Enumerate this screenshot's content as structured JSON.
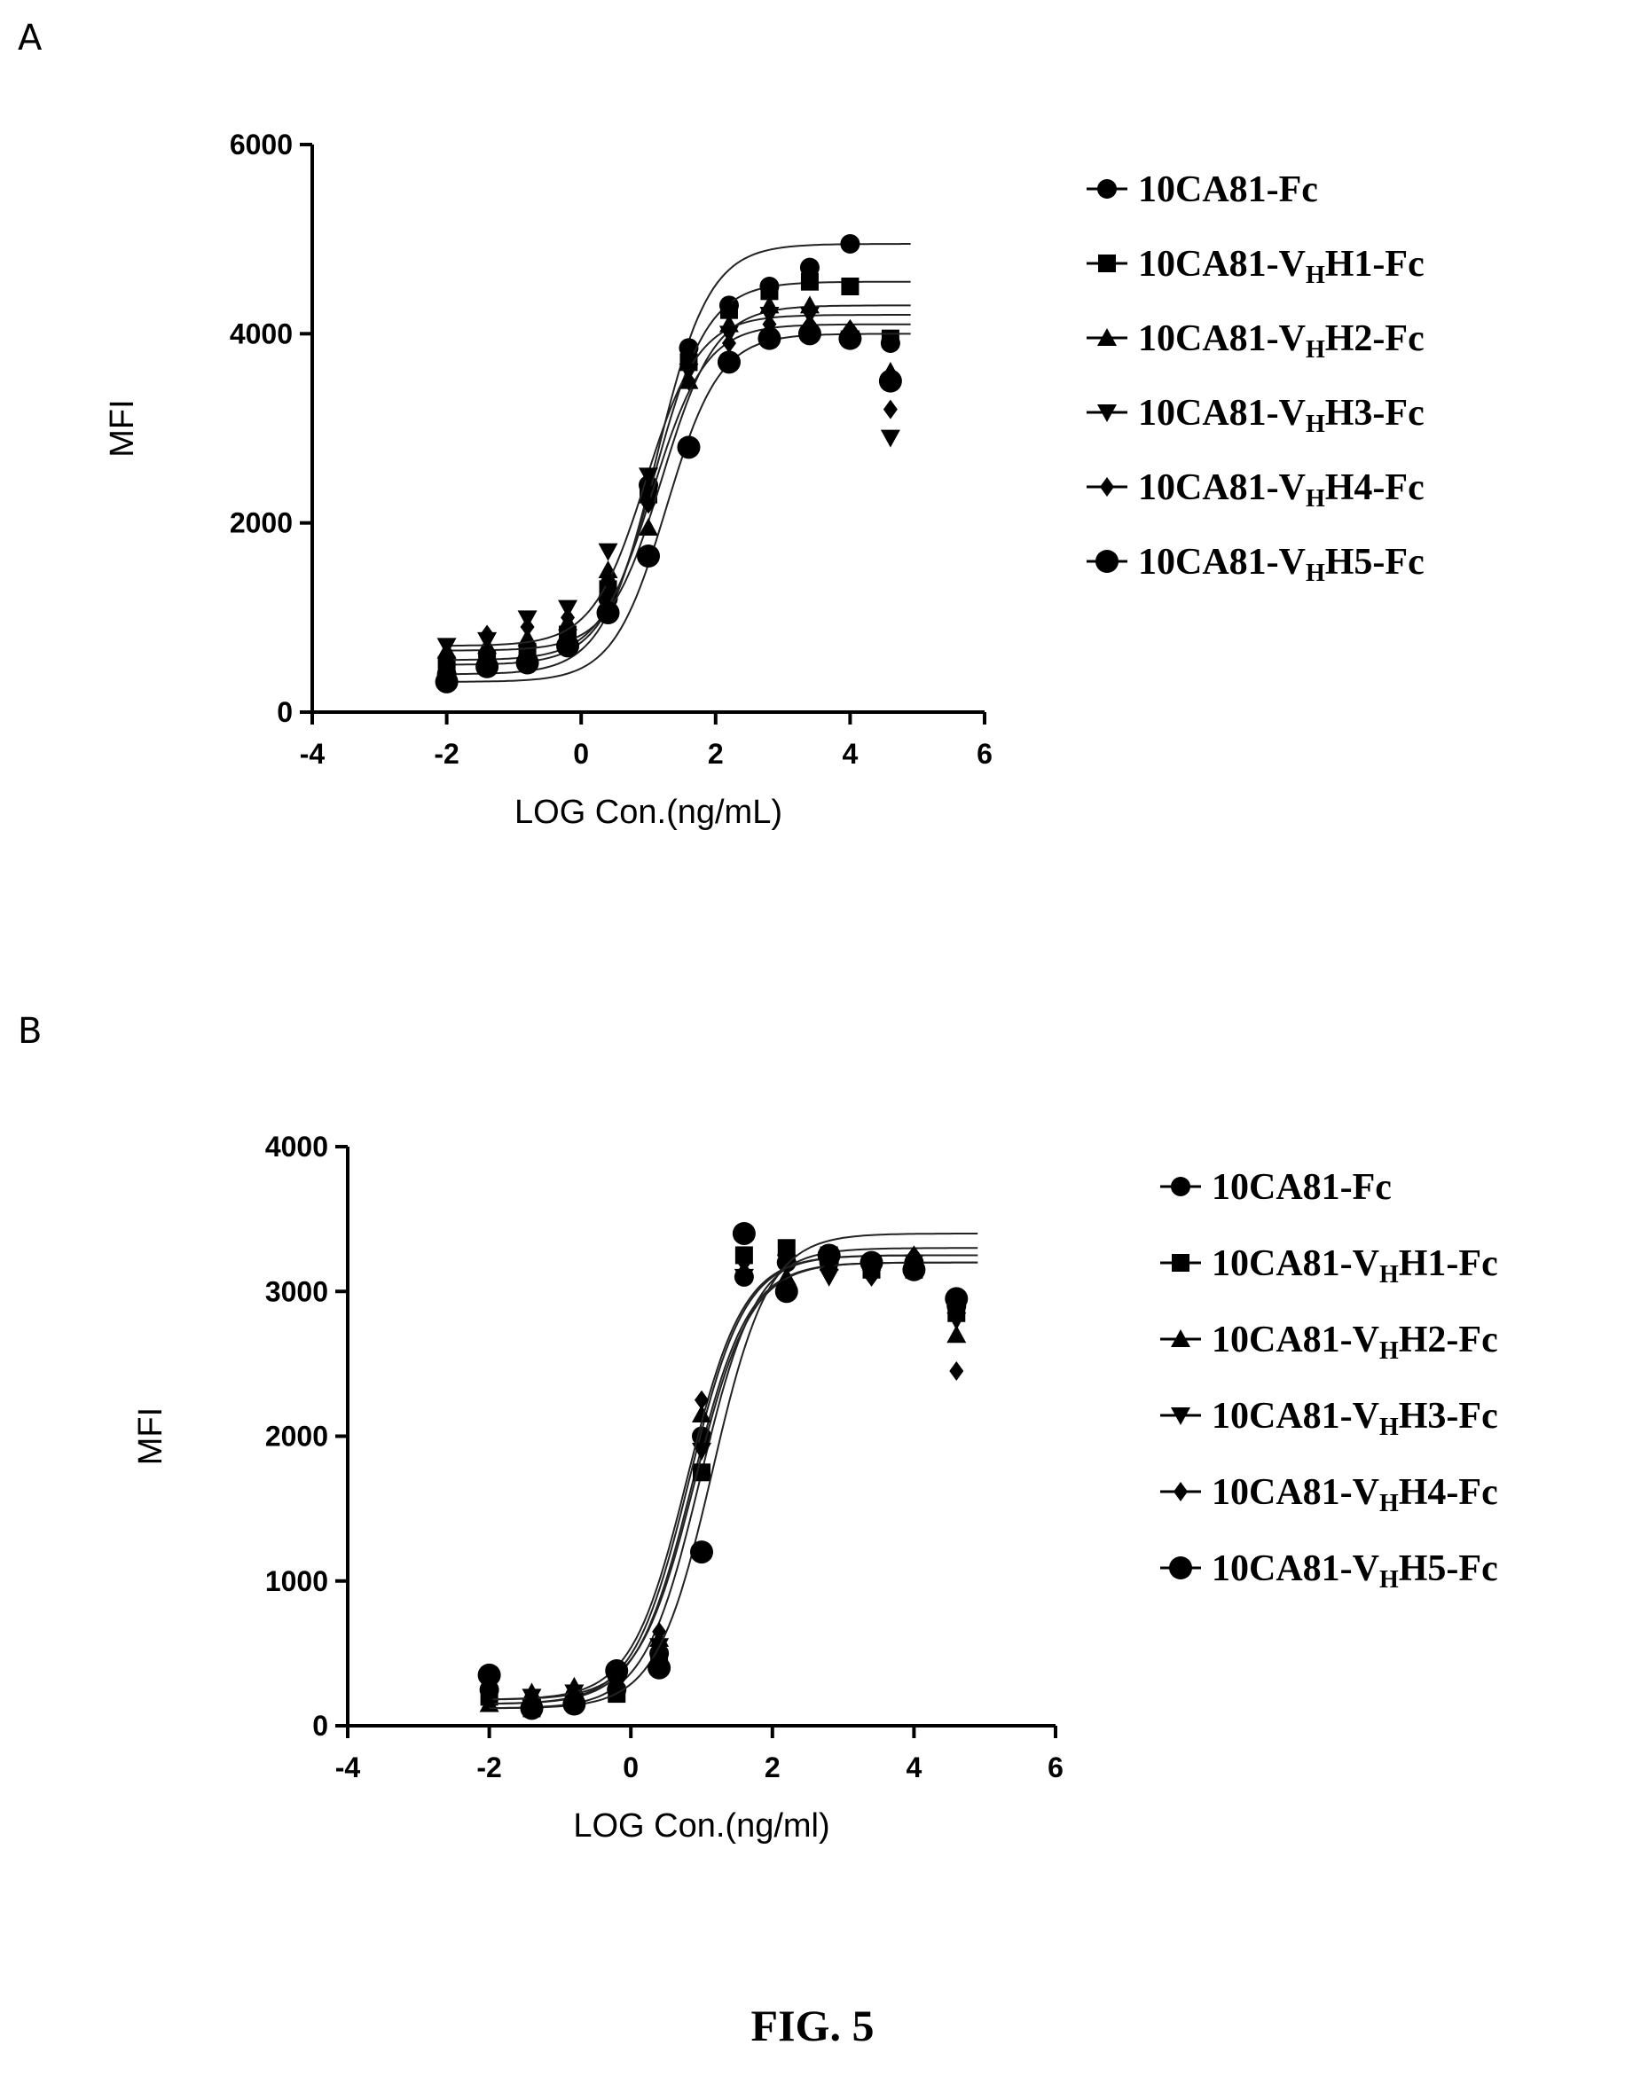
{
  "figure": {
    "caption": "FIG. 5"
  },
  "chart_data": [
    {
      "type": "scatter",
      "panel": "A",
      "xlabel": "LOG Con.(ng/mL)",
      "ylabel": "MFI",
      "xlim": [
        -4,
        6
      ],
      "ylim": [
        0,
        6000
      ],
      "xticks": [
        -4,
        -2,
        0,
        2,
        4,
        6
      ],
      "yticks": [
        0,
        2000,
        4000,
        6000
      ],
      "x": [
        -2.0,
        -1.4,
        -0.8,
        -0.2,
        0.4,
        1.0,
        1.6,
        2.2,
        2.8,
        3.4,
        4.0,
        4.6
      ],
      "grid": false,
      "legend_position": "right",
      "fit": "sigmoidal dose-response curve per series",
      "series": [
        {
          "name": "10CA81-Fc",
          "name_main": "10CA81-",
          "name_sub": "",
          "name_tail": "Fc",
          "marker": "circle",
          "values": [
            400,
            500,
            560,
            720,
            1200,
            2400,
            3850,
            4300,
            4500,
            4700,
            4950,
            3900
          ]
        },
        {
          "name": "10CA81-VHH1-Fc",
          "name_main": "10CA81-V",
          "name_sub": "H",
          "name_tail": "H1-Fc",
          "marker": "square",
          "values": [
            500,
            560,
            640,
            820,
            1300,
            2300,
            3700,
            4250,
            4450,
            4550,
            4500,
            3950
          ]
        },
        {
          "name": "10CA81-VHH2-Fc",
          "name_main": "10CA81-V",
          "name_sub": "H",
          "name_tail": "H2-Fc",
          "marker": "triangle-up",
          "values": [
            650,
            700,
            780,
            950,
            1500,
            1950,
            3500,
            4100,
            4300,
            4300,
            4050,
            3600
          ]
        },
        {
          "name": "10CA81-VHH3-Fc",
          "name_main": "10CA81-V",
          "name_sub": "H",
          "name_tail": "H3-Fc",
          "marker": "triangle-down",
          "values": [
            700,
            760,
            990,
            1100,
            1700,
            2500,
            3600,
            4000,
            4200,
            4200,
            3950,
            2900
          ]
        },
        {
          "name": "10CA81-VHH4-Fc",
          "name_main": "10CA81-V",
          "name_sub": "H",
          "name_tail": "H4-Fc",
          "marker": "diamond",
          "values": [
            550,
            820,
            900,
            1000,
            1400,
            2200,
            3500,
            3900,
            4100,
            4100,
            4050,
            3200
          ]
        },
        {
          "name": "10CA81-VHH5-Fc",
          "name_main": "10CA81-V",
          "name_sub": "H",
          "name_tail": "H5-Fc",
          "marker": "circle-large",
          "values": [
            320,
            480,
            520,
            700,
            1050,
            1650,
            2800,
            3700,
            3950,
            4000,
            3950,
            3500
          ]
        }
      ]
    },
    {
      "type": "scatter",
      "panel": "B",
      "xlabel": "LOG Con.(ng/ml)",
      "ylabel": "MFI",
      "xlim": [
        -4,
        6
      ],
      "ylim": [
        0,
        4000
      ],
      "xticks": [
        -4,
        -2,
        0,
        2,
        4,
        6
      ],
      "yticks": [
        0,
        1000,
        2000,
        3000,
        4000
      ],
      "x": [
        -2.0,
        -1.4,
        -0.8,
        -0.2,
        0.4,
        1.0,
        1.6,
        2.2,
        2.8,
        3.4,
        4.0,
        4.6
      ],
      "grid": false,
      "legend_position": "right",
      "fit": "sigmoidal dose-response curve per series",
      "series": [
        {
          "name": "10CA81-Fc",
          "name_main": "10CA81-",
          "name_sub": "",
          "name_tail": "Fc",
          "marker": "circle",
          "values": [
            250,
            150,
            180,
            250,
            500,
            2000,
            3100,
            3200,
            3200,
            3200,
            3200,
            2900
          ]
        },
        {
          "name": "10CA81-VHH1-Fc",
          "name_main": "10CA81-V",
          "name_sub": "H",
          "name_tail": "H1-Fc",
          "marker": "square",
          "values": [
            200,
            120,
            160,
            220,
            450,
            1750,
            3250,
            3300,
            3250,
            3150,
            3150,
            2850
          ]
        },
        {
          "name": "10CA81-VHH2-Fc",
          "name_main": "10CA81-V",
          "name_sub": "H",
          "name_tail": "H2-Fc",
          "marker": "triangle-up",
          "values": [
            150,
            230,
            270,
            300,
            600,
            2150,
            3150,
            3100,
            3200,
            3200,
            3250,
            2700
          ]
        },
        {
          "name": "10CA81-VHH3-Fc",
          "name_main": "10CA81-V",
          "name_sub": "H",
          "name_tail": "H3-Fc",
          "marker": "triangle-down",
          "values": [
            180,
            200,
            230,
            280,
            550,
            1900,
            3100,
            3200,
            3100,
            3150,
            3200,
            2800
          ]
        },
        {
          "name": "10CA81-VHH4-Fc",
          "name_main": "10CA81-V",
          "name_sub": "H",
          "name_tail": "H4-Fc",
          "marker": "diamond",
          "values": [
            220,
            180,
            210,
            320,
            650,
            2250,
            3200,
            3250,
            3150,
            3100,
            3250,
            2450
          ]
        },
        {
          "name": "10CA81-VHH5-Fc",
          "name_main": "10CA81-V",
          "name_sub": "H",
          "name_tail": "H5-Fc",
          "marker": "circle-large",
          "values": [
            350,
            120,
            150,
            380,
            400,
            1200,
            3400,
            3000,
            3250,
            3200,
            3150,
            2950
          ]
        }
      ]
    }
  ]
}
